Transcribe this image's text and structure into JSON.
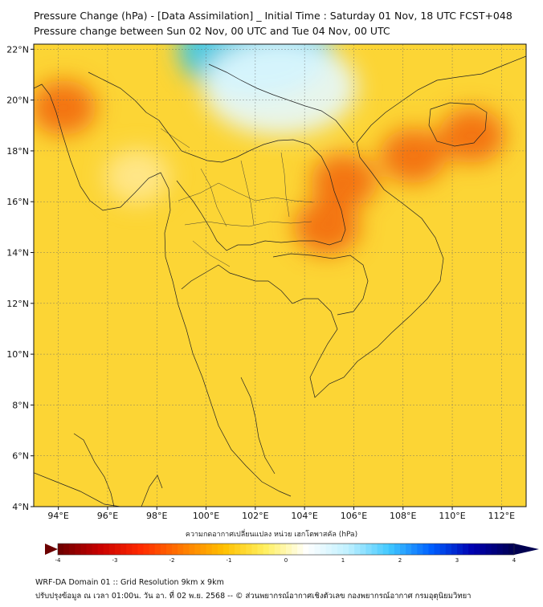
{
  "title_line1": "Pressure Change (hPa) - [Data Assimilation] _ Initial Time : Saturday 01 Nov, 18 UTC FCST+048",
  "title_line2": "Pressure change between Sun 02 Nov, 00 UTC and Tue 04 Nov, 00 UTC",
  "map": {
    "lat_labels": [
      "22°N",
      "20°N",
      "18°N",
      "16°N",
      "14°N",
      "12°N",
      "10°N",
      "8°N",
      "6°N",
      "4°N"
    ],
    "lon_labels": [
      "94°E",
      "96°E",
      "98°E",
      "100°E",
      "102°E",
      "104°E",
      "106°E",
      "108°E",
      "110°E",
      "112°E"
    ],
    "lat_range": [
      4,
      22.2
    ],
    "lon_range": [
      93,
      113
    ],
    "field_hotspots": [
      {
        "lon": 94.2,
        "lat": 19.7,
        "value": -2.6
      },
      {
        "lon": 105.6,
        "lat": 16.8,
        "value": -2.9
      },
      {
        "lon": 104.9,
        "lat": 15.0,
        "value": -2.4
      },
      {
        "lon": 108.4,
        "lat": 17.8,
        "value": -2.7
      },
      {
        "lon": 110.8,
        "lat": 18.6,
        "value": -2.4
      },
      {
        "lon": 102.0,
        "lat": 22.0,
        "value": 1.6
      },
      {
        "lon": 103.0,
        "lat": 20.5,
        "value": 0.5
      },
      {
        "lon": 97.2,
        "lat": 17.0,
        "value": -0.2
      }
    ]
  },
  "colorbar": {
    "label": "ความกดอากาศเปลี่ยนแปลง หน่วย เฮกโตพาสคัล (hPa)",
    "min": -4,
    "max": 4,
    "ticks": [
      "-4",
      "-3",
      "-2",
      "-1",
      "0",
      "1",
      "2",
      "3",
      "4"
    ],
    "colors": [
      "#6b0000",
      "#c80000",
      "#ff2a00",
      "#ff7a00",
      "#ffc000",
      "#fff060",
      "#ffffff",
      "#bff0ff",
      "#40c8ff",
      "#0060ff",
      "#0000b0",
      "#000050"
    ]
  },
  "footer_line1": "WRF-DA Domain 01 :: Grid Resolution 9km x 9km",
  "footer_line2": "ปรับปรุงข้อมูล ณ เวลา 01:00น. วัน อา. ที่ 02 พ.ย. 2568 -- © ส่วนพยากรณ์อากาศเชิงตัวเลข กองพยากรณ์อากาศ กรมอุตุนิยมวิทยา"
}
